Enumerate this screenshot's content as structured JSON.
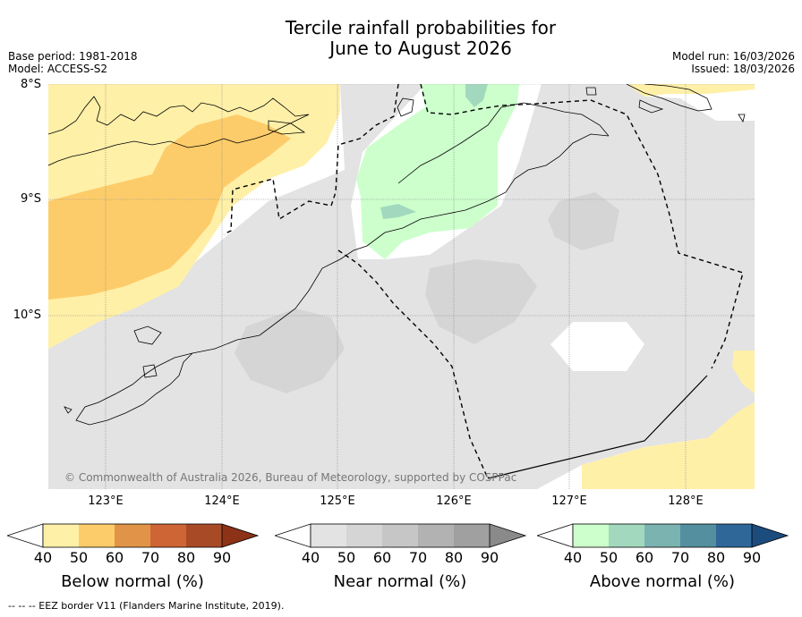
{
  "title": {
    "line1": "Tercile rainfall probabilities for",
    "line2": "June to August 2026"
  },
  "meta": {
    "base_period": "Base period: 1981-2018",
    "model": "Model: ACCESS-S2",
    "model_run": "Model run: 16/03/2026",
    "issued": "Issued: 18/03/2026"
  },
  "map": {
    "lat_labels": [
      "8°S",
      "9°S",
      "10°S"
    ],
    "lon_labels": [
      "123°E",
      "124°E",
      "125°E",
      "126°E",
      "127°E",
      "128°E"
    ],
    "copyright": "© Commonwealth of Australia 2026, Bureau of Meteorology, supported by COSPPac"
  },
  "legend": {
    "ticks": [
      "40",
      "50",
      "60",
      "70",
      "80",
      "90"
    ],
    "below": {
      "title": "Below normal (%)",
      "colors": [
        "#fff0a8",
        "#fdcc6a",
        "#e19447",
        "#cd6535",
        "#a94a27",
        "#8b3217"
      ]
    },
    "near": {
      "title": "Near normal (%)",
      "colors": [
        "#e3e3e3",
        "#d5d5d5",
        "#c6c6c6",
        "#b2b2b2",
        "#a0a0a0",
        "#8a8a8a"
      ]
    },
    "above": {
      "title": "Above normal (%)",
      "colors": [
        "#ccffcc",
        "#a2d9be",
        "#7ab3b0",
        "#538f9f",
        "#2e6798",
        "#1c4b7e"
      ]
    }
  },
  "footer": "--  --  -- EEZ border V11 (Flanders Marine Institute, 2019)."
}
